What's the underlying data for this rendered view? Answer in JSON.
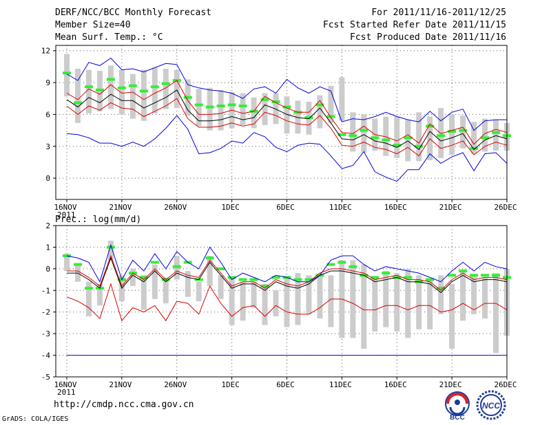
{
  "header": {
    "title": "DERF/NCC/BCC Monthly Forecast",
    "member_size": "Member Size=40",
    "variable": "Mean Surf. Temp.: °C",
    "period": "For 2011/11/16-2011/12/25",
    "fcst_started": "Fcst Started Refer Date 2011/11/15",
    "fcst_produced": "Fcst Produced Date 2011/11/16"
  },
  "footer": {
    "url": "http://cmdp.ncc.cma.gov.cn",
    "grads": "GrADS: COLA/IGES",
    "logo_bcc": "BCC",
    "logo_ncc": "NCC"
  },
  "colors": {
    "box": "#cccccc",
    "median": "#33ee33",
    "mean": "#000000",
    "spread": "#dd0000",
    "extreme": "#0000dd",
    "grid": "#555555"
  },
  "chart_data": [
    {
      "type": "line",
      "title": "Mean Surf. Temp.: °C",
      "xlabel": "",
      "ylabel": "°C",
      "xlim": [
        1,
        41
      ],
      "ylim": [
        -2,
        12.5
      ],
      "yticks": [
        0,
        3,
        6,
        9,
        12
      ],
      "xticks": [
        {
          "day": 1,
          "label": "16NOV"
        },
        {
          "day": 6,
          "label": "21NOV"
        },
        {
          "day": 11,
          "label": "26NOV"
        },
        {
          "day": 16,
          "label": "1DEC"
        },
        {
          "day": 21,
          "label": "6DEC"
        },
        {
          "day": 26,
          "label": "11DEC"
        },
        {
          "day": 31,
          "label": "16DEC"
        },
        {
          "day": 36,
          "label": "21DEC"
        },
        {
          "day": 41,
          "label": "26DEC"
        }
      ],
      "year_label": "2011",
      "grid": true,
      "x_start": 1,
      "box_high": [
        11.7,
        10.3,
        10.2,
        10.1,
        10.6,
        10.2,
        9.8,
        10.2,
        10.4,
        10.3,
        10.2,
        9.3,
        8.4,
        8.5,
        8.3,
        8.1,
        8.0,
        7.6,
        8.0,
        8.0,
        7.7,
        7.3,
        7.2,
        7.8,
        8.7,
        9.5,
        6.2,
        6.0,
        5.6,
        5.8,
        5.8,
        5.5,
        6.2,
        5.8,
        6.6,
        6.0,
        5.9,
        5.3,
        5.6,
        5.5,
        5.2
      ],
      "box_low": [
        7.7,
        5.2,
        6.1,
        6.3,
        6.5,
        6.0,
        5.6,
        5.4,
        6.1,
        6.5,
        6.6,
        5.9,
        4.9,
        4.5,
        4.5,
        4.7,
        5.0,
        4.7,
        5.0,
        5.1,
        4.2,
        4.2,
        4.1,
        4.7,
        5.2,
        5.4,
        2.5,
        2.4,
        2.6,
        2.1,
        1.9,
        1.6,
        1.6,
        1.7,
        1.9,
        2.2,
        2.8,
        2.3,
        2.5,
        2.6,
        2.6
      ],
      "series": [
        {
          "name": "median",
          "style": "dash",
          "values": [
            9.9,
            7.1,
            8.6,
            8.3,
            9.3,
            8.5,
            8.7,
            8.2,
            8.6,
            8.9,
            9.2,
            7.6,
            6.9,
            6.7,
            6.8,
            6.9,
            6.8,
            6.3,
            7.4,
            7.2,
            6.7,
            6.2,
            5.7,
            6.9,
            5.8,
            4.1,
            4.0,
            4.5,
            3.8,
            3.6,
            3.1,
            3.8,
            3.0,
            4.9,
            4.0,
            4.4,
            4.5,
            2.8,
            3.8,
            4.3,
            4.0
          ]
        },
        {
          "name": "mean",
          "style": "line",
          "values": [
            7.4,
            6.7,
            7.6,
            7.1,
            7.9,
            7.3,
            7.3,
            6.6,
            7.1,
            7.6,
            8.3,
            6.4,
            5.4,
            5.4,
            5.5,
            5.8,
            5.5,
            5.7,
            6.9,
            6.5,
            6.0,
            5.7,
            5.6,
            6.6,
            5.2,
            3.7,
            3.6,
            4.1,
            3.5,
            3.3,
            2.9,
            3.5,
            2.7,
            4.4,
            3.5,
            3.8,
            4.2,
            2.7,
            3.6,
            4.0,
            3.7
          ]
        },
        {
          "name": "mean_plus_sd",
          "style": "line",
          "values": [
            8.0,
            7.4,
            8.4,
            7.9,
            8.8,
            8.0,
            8.1,
            7.4,
            8.0,
            8.5,
            9.2,
            7.3,
            6.0,
            6.0,
            6.1,
            6.4,
            6.1,
            6.3,
            7.7,
            7.1,
            6.6,
            6.2,
            6.2,
            7.3,
            5.7,
            4.3,
            4.2,
            4.9,
            4.1,
            3.9,
            3.5,
            4.1,
            3.3,
            5.1,
            4.2,
            4.5,
            4.8,
            3.2,
            4.2,
            4.6,
            4.3
          ]
        },
        {
          "name": "mean_minus_sd",
          "style": "line",
          "values": [
            6.8,
            6.0,
            6.8,
            6.4,
            7.1,
            6.6,
            6.5,
            5.8,
            6.3,
            6.8,
            7.5,
            5.6,
            4.8,
            4.8,
            4.9,
            5.2,
            4.9,
            5.1,
            6.2,
            5.9,
            5.4,
            5.1,
            5.0,
            5.9,
            4.7,
            3.1,
            3.0,
            3.4,
            2.9,
            2.7,
            2.3,
            2.9,
            2.1,
            3.7,
            2.8,
            3.1,
            3.5,
            2.2,
            3.0,
            3.4,
            3.1
          ]
        },
        {
          "name": "max",
          "style": "line",
          "values": [
            9.8,
            9.2,
            10.9,
            10.6,
            11.3,
            10.2,
            10.3,
            10.0,
            10.4,
            10.8,
            10.7,
            8.8,
            8.5,
            8.3,
            8.2,
            8.0,
            7.5,
            8.4,
            8.6,
            8.0,
            9.3,
            8.5,
            8.0,
            8.6,
            8.2,
            5.3,
            5.6,
            5.5,
            5.8,
            6.2,
            5.8,
            5.5,
            5.3,
            6.3,
            5.4,
            6.2,
            6.5,
            4.5,
            5.4,
            5.5,
            5.5
          ]
        },
        {
          "name": "min",
          "style": "line",
          "values": [
            4.2,
            4.1,
            3.8,
            3.3,
            3.3,
            3.0,
            3.4,
            3.0,
            3.7,
            4.7,
            5.9,
            4.6,
            2.3,
            2.4,
            2.8,
            3.5,
            3.3,
            4.3,
            3.9,
            2.9,
            2.5,
            3.1,
            3.3,
            3.2,
            2.1,
            0.9,
            1.2,
            2.5,
            0.6,
            0.1,
            -0.3,
            0.8,
            0.8,
            2.3,
            1.4,
            2.0,
            2.4,
            0.7,
            2.3,
            2.4,
            1.4
          ]
        }
      ]
    },
    {
      "type": "line",
      "title": "Prec.: log(mm/d)",
      "xlabel": "",
      "ylabel": "log(mm/d)",
      "xlim": [
        1,
        41
      ],
      "ylim": [
        -5,
        2
      ],
      "yticks": [
        -5,
        -4,
        -3,
        -2,
        -1,
        0,
        1,
        2
      ],
      "xticks": [
        {
          "day": 1,
          "label": "16NOV"
        },
        {
          "day": 6,
          "label": "21NOV"
        },
        {
          "day": 11,
          "label": "26NOV"
        },
        {
          "day": 16,
          "label": "1DEC"
        },
        {
          "day": 21,
          "label": "6DEC"
        },
        {
          "day": 26,
          "label": "11DEC"
        },
        {
          "day": 31,
          "label": "16DEC"
        },
        {
          "day": 36,
          "label": "21DEC"
        },
        {
          "day": 41,
          "label": "26DEC"
        }
      ],
      "year_label": "2011",
      "grid": true,
      "x_start": 1,
      "box_high": [
        0.7,
        0.2,
        -0.6,
        -0.7,
        1.3,
        -0.3,
        0.0,
        -0.3,
        0.2,
        -0.4,
        0.6,
        -0.1,
        -0.6,
        0.6,
        -0.3,
        -0.4,
        -0.6,
        -0.6,
        -0.7,
        -1.0,
        -0.4,
        -0.2,
        -0.3,
        -0.3,
        -0.3,
        0.4,
        0.4,
        0.2,
        -0.4,
        -0.1,
        -0.2,
        0.0,
        -0.3,
        -0.5,
        -0.3,
        -0.7,
        -0.1,
        -0.3,
        -0.4,
        -0.2,
        0.0
      ],
      "box_low": [
        -0.1,
        -0.6,
        -2.2,
        -1.7,
        0.4,
        -1.5,
        -0.8,
        -1.9,
        -1.4,
        -1.6,
        -0.5,
        -1.3,
        -1.5,
        -0.8,
        -1.4,
        -2.6,
        -2.4,
        -1.8,
        -2.6,
        -2.2,
        -2.7,
        -2.6,
        -2.1,
        -2.3,
        -2.7,
        -3.2,
        -3.2,
        -3.7,
        -2.9,
        -2.7,
        -2.9,
        -3.2,
        -2.8,
        -2.8,
        -2.1,
        -3.7,
        -2.4,
        -2.1,
        -2.3,
        -3.9,
        -3.1
      ],
      "series": [
        {
          "name": "median",
          "style": "dash",
          "values": [
            0.6,
            0.2,
            -0.9,
            -0.9,
            1.0,
            -0.5,
            -0.2,
            -0.4,
            0.3,
            -0.5,
            0.1,
            0.3,
            -0.5,
            0.5,
            0.0,
            -0.4,
            -0.5,
            -0.5,
            -0.8,
            -0.4,
            -0.4,
            -0.5,
            -0.5,
            -0.3,
            0.2,
            0.3,
            0.1,
            -0.3,
            -0.4,
            -0.2,
            -0.4,
            -0.4,
            -0.6,
            -0.5,
            -0.9,
            -0.3,
            -0.1,
            -0.3,
            -0.3,
            -0.3,
            -0.4
          ]
        },
        {
          "name": "mean",
          "style": "line",
          "values": [
            -0.2,
            -0.2,
            -0.5,
            -0.9,
            0.5,
            -0.9,
            -0.3,
            -0.6,
            -0.1,
            -0.6,
            -0.2,
            -0.4,
            -0.5,
            0.3,
            -0.3,
            -0.9,
            -0.7,
            -0.7,
            -1.0,
            -0.6,
            -0.8,
            -0.9,
            -0.7,
            -0.3,
            -0.1,
            -0.1,
            -0.2,
            -0.3,
            -0.6,
            -0.5,
            -0.4,
            -0.6,
            -0.6,
            -0.7,
            -1.1,
            -0.6,
            -0.3,
            -0.6,
            -0.5,
            -0.5,
            -0.6
          ]
        },
        {
          "name": "mean_plus_sd",
          "style": "line",
          "values": [
            -0.1,
            -0.1,
            -0.4,
            -0.8,
            0.6,
            -0.8,
            -0.2,
            -0.5,
            0.0,
            -0.5,
            -0.1,
            -0.3,
            -0.4,
            0.4,
            -0.2,
            -0.8,
            -0.6,
            -0.6,
            -0.9,
            -0.5,
            -0.7,
            -0.8,
            -0.6,
            -0.2,
            0.0,
            0.0,
            -0.1,
            -0.2,
            -0.5,
            -0.4,
            -0.3,
            -0.5,
            -0.5,
            -0.6,
            -1.0,
            -0.5,
            -0.2,
            -0.5,
            -0.4,
            -0.4,
            -0.5
          ]
        },
        {
          "name": "mean_minus_sd",
          "style": "line",
          "values": [
            -1.3,
            -1.5,
            -1.8,
            -2.3,
            -0.7,
            -2.4,
            -1.8,
            -2.0,
            -1.7,
            -2.4,
            -1.5,
            -1.6,
            -2.1,
            -0.8,
            -1.6,
            -2.2,
            -1.8,
            -1.7,
            -2.2,
            -1.7,
            -2.0,
            -2.1,
            -2.1,
            -1.8,
            -1.4,
            -1.4,
            -1.6,
            -1.9,
            -1.9,
            -1.7,
            -1.7,
            -1.9,
            -1.7,
            -1.7,
            -2.0,
            -1.9,
            -1.6,
            -1.9,
            -1.6,
            -1.6,
            -1.9
          ]
        },
        {
          "name": "max",
          "style": "line",
          "values": [
            0.6,
            0.5,
            0.3,
            -0.6,
            1.1,
            -0.5,
            0.4,
            -0.1,
            0.7,
            0.0,
            0.8,
            0.3,
            0.0,
            1.0,
            0.3,
            -0.5,
            -0.2,
            -0.4,
            -0.6,
            -0.3,
            -0.4,
            -0.6,
            -0.6,
            -0.3,
            0.4,
            0.6,
            0.6,
            0.2,
            -0.1,
            0.1,
            0.0,
            -0.1,
            -0.2,
            -0.4,
            -0.6,
            -0.1,
            0.3,
            -0.1,
            0.3,
            0.1,
            0.0
          ]
        },
        {
          "name": "min",
          "style": "line",
          "values": [
            -4.0,
            -4.0,
            -4.0,
            -4.0,
            -4.0,
            -4.0,
            -4.0,
            -4.0,
            -4.0,
            -4.0,
            -4.0,
            -4.0,
            -4.0,
            -4.0,
            -4.0,
            -4.0,
            -4.0,
            -4.0,
            -4.0,
            -4.0,
            -4.0,
            -4.0,
            -4.0,
            -4.0,
            -4.0,
            -4.0,
            -4.0,
            -4.0,
            -4.0,
            -4.0,
            -4.0,
            -4.0,
            -4.0,
            -4.0,
            -4.0,
            -4.0,
            -4.0,
            -4.0,
            -4.0,
            -4.0,
            -4.0
          ]
        }
      ]
    }
  ]
}
